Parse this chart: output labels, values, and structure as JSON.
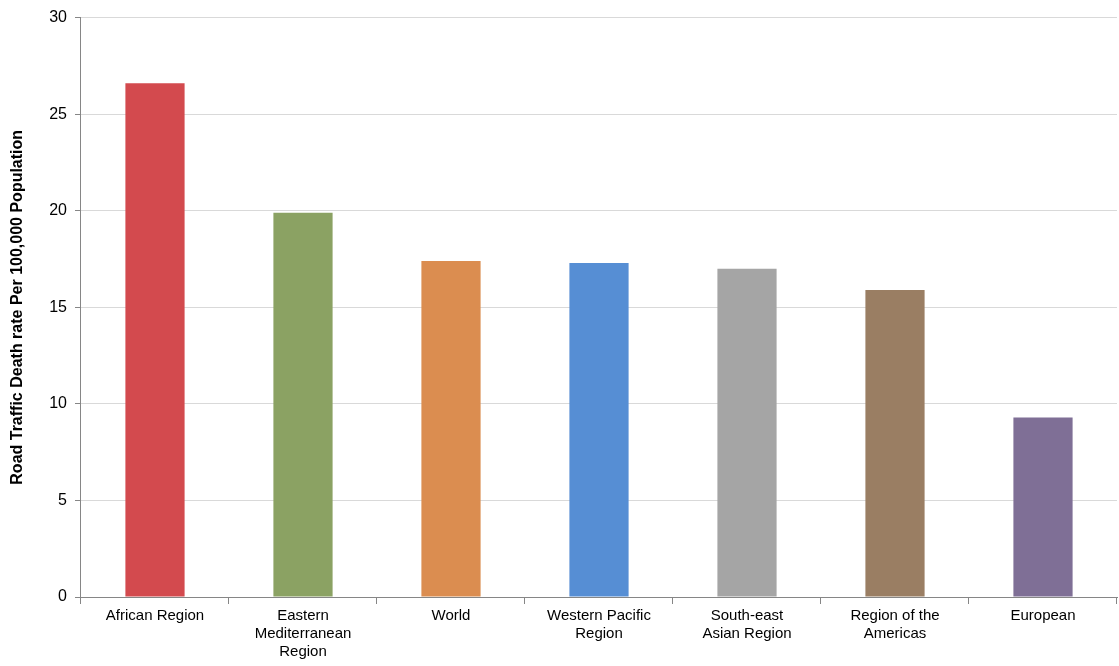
{
  "chart_data": {
    "type": "bar",
    "ylabel": "Road Traffic Death rate Per 100,000 Population",
    "categories": [
      "African Region",
      "Eastern Mediterranean Region",
      "World",
      "Western Pacific Region",
      "South-east Asian Region",
      "Region of the Americas",
      "European"
    ],
    "values": [
      26.6,
      19.9,
      17.4,
      17.3,
      17.0,
      15.9,
      9.3
    ],
    "colors": [
      "#d34a4e",
      "#8ba263",
      "#db8d50",
      "#568ed4",
      "#a5a5a5",
      "#9a7e63",
      "#7f6f96"
    ],
    "ylim": [
      0,
      30
    ],
    "yticks": [
      0,
      5,
      10,
      15,
      20,
      25,
      30
    ],
    "grid": "y",
    "legend": false
  }
}
